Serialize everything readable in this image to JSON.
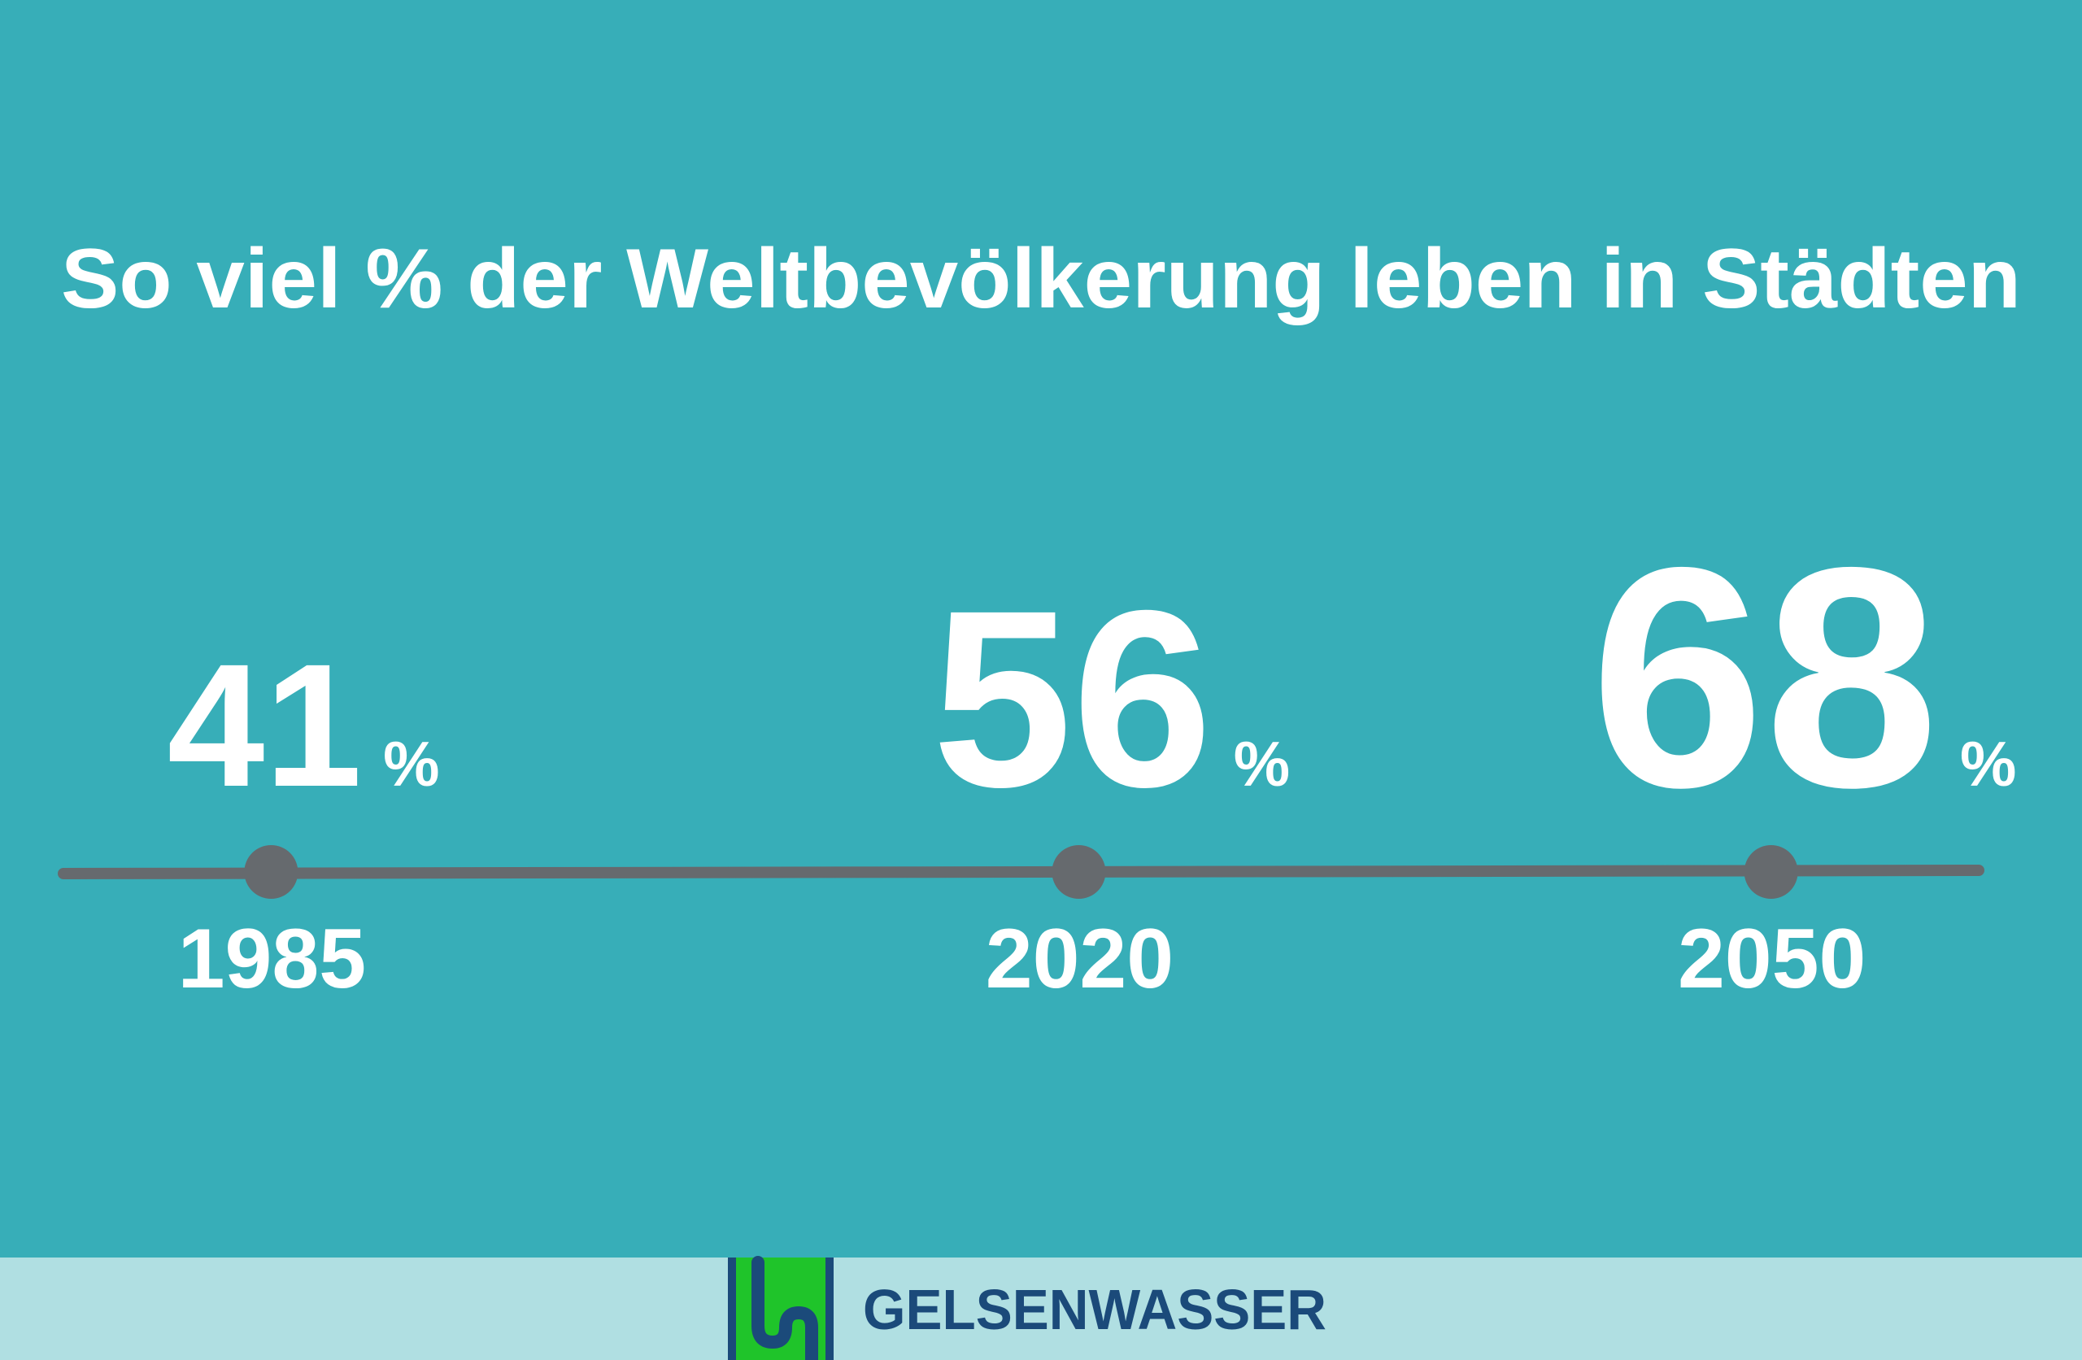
{
  "chart_data": {
    "type": "timeline",
    "title": "So viel % der Weltbevölkerung leben in Städten",
    "x": [
      1985,
      2020,
      2050
    ],
    "values": [
      41,
      56,
      68
    ],
    "unit": "%",
    "xlim": [
      1976,
      2059
    ],
    "color": "#666a6e",
    "background": "#37aeb8"
  },
  "footer": {
    "brand": "GELSENWASSER"
  }
}
